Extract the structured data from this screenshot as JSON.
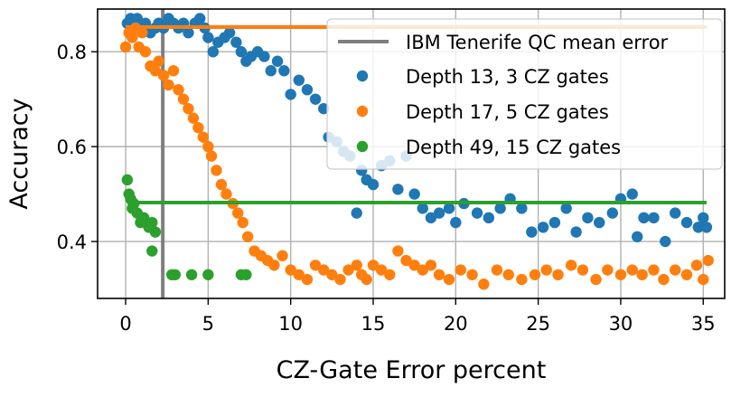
{
  "chart_data": {
    "type": "scatter",
    "xlabel": "CZ-Gate Error percent",
    "ylabel": "Accuracy",
    "xlim": [
      -1.7,
      36.3
    ],
    "ylim": [
      0.28,
      0.89
    ],
    "xticks": [
      0,
      5,
      10,
      15,
      20,
      25,
      30,
      35
    ],
    "yticks": [
      0.4,
      0.6,
      0.8
    ],
    "xtick_labels": [
      "0",
      "5",
      "10",
      "15",
      "20",
      "25",
      "30",
      "35"
    ],
    "ytick_labels": [
      "0.4",
      "0.6",
      "0.8"
    ],
    "grid": true,
    "legend_position": "top-right",
    "reference_line": {
      "label": "IBM Tenerife QC mean error",
      "x": 2.25,
      "color": "#7f7f7f"
    },
    "series": [
      {
        "name": "Depth 13, 3 CZ gates",
        "color": "#1f77b4",
        "mean_accuracy": 0.852,
        "points": [
          [
            0.1,
            0.86
          ],
          [
            0.3,
            0.87
          ],
          [
            0.5,
            0.86
          ],
          [
            0.7,
            0.87
          ],
          [
            0.9,
            0.85
          ],
          [
            1.2,
            0.86
          ],
          [
            1.5,
            0.84
          ],
          [
            1.8,
            0.85
          ],
          [
            2.0,
            0.86
          ],
          [
            2.3,
            0.85
          ],
          [
            2.6,
            0.87
          ],
          [
            2.9,
            0.86
          ],
          [
            3.2,
            0.85
          ],
          [
            3.5,
            0.86
          ],
          [
            3.8,
            0.84
          ],
          [
            4.2,
            0.86
          ],
          [
            4.5,
            0.87
          ],
          [
            4.8,
            0.85
          ],
          [
            5.0,
            0.83
          ],
          [
            5.3,
            0.8
          ],
          [
            5.6,
            0.82
          ],
          [
            6.0,
            0.83
          ],
          [
            6.3,
            0.84
          ],
          [
            6.7,
            0.82
          ],
          [
            7.0,
            0.8
          ],
          [
            7.3,
            0.78
          ],
          [
            7.6,
            0.79
          ],
          [
            8.0,
            0.8
          ],
          [
            8.4,
            0.79
          ],
          [
            8.8,
            0.76
          ],
          [
            9.2,
            0.78
          ],
          [
            9.6,
            0.76
          ],
          [
            10.0,
            0.71
          ],
          [
            10.5,
            0.74
          ],
          [
            11.0,
            0.72
          ],
          [
            11.5,
            0.7
          ],
          [
            12.0,
            0.68
          ],
          [
            12.3,
            0.62
          ],
          [
            12.8,
            0.61
          ],
          [
            13.2,
            0.59
          ],
          [
            13.6,
            0.58
          ],
          [
            14.0,
            0.46
          ],
          [
            14.3,
            0.55
          ],
          [
            14.6,
            0.53
          ],
          [
            15.0,
            0.52
          ],
          [
            15.5,
            0.56
          ],
          [
            16.0,
            0.57
          ],
          [
            16.5,
            0.51
          ],
          [
            17.0,
            0.58
          ],
          [
            17.5,
            0.5
          ],
          [
            18.0,
            0.47
          ],
          [
            18.5,
            0.45
          ],
          [
            19.0,
            0.46
          ],
          [
            19.6,
            0.47
          ],
          [
            20.0,
            0.44
          ],
          [
            20.5,
            0.48
          ],
          [
            21.3,
            0.46
          ],
          [
            22.0,
            0.45
          ],
          [
            22.7,
            0.47
          ],
          [
            23.3,
            0.49
          ],
          [
            24.0,
            0.47
          ],
          [
            24.6,
            0.42
          ],
          [
            25.3,
            0.43
          ],
          [
            26.0,
            0.44
          ],
          [
            26.7,
            0.47
          ],
          [
            27.3,
            0.42
          ],
          [
            28.0,
            0.45
          ],
          [
            28.7,
            0.44
          ],
          [
            29.5,
            0.46
          ],
          [
            30.0,
            0.49
          ],
          [
            30.7,
            0.5
          ],
          [
            31.0,
            0.41
          ],
          [
            31.4,
            0.45
          ],
          [
            32.0,
            0.45
          ],
          [
            32.7,
            0.4
          ],
          [
            33.3,
            0.46
          ],
          [
            34.0,
            0.44
          ],
          [
            34.7,
            0.43
          ],
          [
            35.0,
            0.45
          ],
          [
            35.2,
            0.43
          ]
        ]
      },
      {
        "name": "Depth 17, 5 CZ gates",
        "color": "#ff7f0e",
        "mean_accuracy": 0.852,
        "points": [
          [
            0.0,
            0.81
          ],
          [
            0.2,
            0.84
          ],
          [
            0.4,
            0.83
          ],
          [
            0.6,
            0.85
          ],
          [
            0.8,
            0.81
          ],
          [
            1.0,
            0.84
          ],
          [
            1.2,
            0.8
          ],
          [
            1.5,
            0.77
          ],
          [
            1.8,
            0.76
          ],
          [
            2.0,
            0.78
          ],
          [
            2.3,
            0.75
          ],
          [
            2.6,
            0.73
          ],
          [
            2.9,
            0.76
          ],
          [
            3.2,
            0.72
          ],
          [
            3.5,
            0.7
          ],
          [
            3.8,
            0.68
          ],
          [
            4.1,
            0.66
          ],
          [
            4.4,
            0.64
          ],
          [
            4.7,
            0.62
          ],
          [
            5.0,
            0.6
          ],
          [
            5.2,
            0.58
          ],
          [
            5.5,
            0.55
          ],
          [
            5.8,
            0.52
          ],
          [
            6.1,
            0.5
          ],
          [
            6.5,
            0.48
          ],
          [
            6.8,
            0.46
          ],
          [
            7.1,
            0.44
          ],
          [
            7.4,
            0.41
          ],
          [
            7.8,
            0.38
          ],
          [
            8.2,
            0.37
          ],
          [
            8.6,
            0.36
          ],
          [
            9.0,
            0.35
          ],
          [
            9.5,
            0.37
          ],
          [
            10.0,
            0.34
          ],
          [
            10.5,
            0.33
          ],
          [
            11.0,
            0.32
          ],
          [
            11.5,
            0.35
          ],
          [
            12.0,
            0.34
          ],
          [
            12.5,
            0.33
          ],
          [
            13.0,
            0.32
          ],
          [
            13.5,
            0.34
          ],
          [
            14.0,
            0.35
          ],
          [
            14.3,
            0.33
          ],
          [
            14.6,
            0.32
          ],
          [
            15.0,
            0.35
          ],
          [
            15.5,
            0.34
          ],
          [
            16.0,
            0.33
          ],
          [
            16.5,
            0.38
          ],
          [
            17.0,
            0.36
          ],
          [
            17.5,
            0.35
          ],
          [
            18.0,
            0.34
          ],
          [
            18.5,
            0.35
          ],
          [
            19.0,
            0.33
          ],
          [
            19.6,
            0.32
          ],
          [
            20.3,
            0.34
          ],
          [
            21.0,
            0.33
          ],
          [
            21.7,
            0.31
          ],
          [
            22.5,
            0.34
          ],
          [
            23.2,
            0.33
          ],
          [
            24.0,
            0.32
          ],
          [
            24.8,
            0.33
          ],
          [
            25.5,
            0.34
          ],
          [
            26.2,
            0.33
          ],
          [
            27.0,
            0.35
          ],
          [
            27.7,
            0.34
          ],
          [
            28.5,
            0.32
          ],
          [
            29.2,
            0.34
          ],
          [
            30.0,
            0.33
          ],
          [
            30.7,
            0.34
          ],
          [
            31.3,
            0.33
          ],
          [
            32.0,
            0.34
          ],
          [
            32.6,
            0.32
          ],
          [
            33.3,
            0.34
          ],
          [
            34.0,
            0.33
          ],
          [
            34.6,
            0.35
          ],
          [
            35.0,
            0.32
          ],
          [
            35.3,
            0.36
          ]
        ]
      },
      {
        "name": "Depth 49, 15 CZ gates",
        "color": "#2ca02c",
        "mean_accuracy": 0.482,
        "points": [
          [
            0.1,
            0.53
          ],
          [
            0.2,
            0.5
          ],
          [
            0.3,
            0.49
          ],
          [
            0.4,
            0.47
          ],
          [
            0.5,
            0.48
          ],
          [
            0.7,
            0.46
          ],
          [
            0.9,
            0.44
          ],
          [
            1.1,
            0.45
          ],
          [
            1.4,
            0.43
          ],
          [
            1.6,
            0.44
          ],
          [
            1.8,
            0.42
          ],
          [
            1.6,
            0.38
          ],
          [
            2.8,
            0.33
          ],
          [
            3.0,
            0.33
          ],
          [
            4.0,
            0.33
          ],
          [
            5.0,
            0.33
          ],
          [
            7.0,
            0.33
          ],
          [
            7.3,
            0.33
          ]
        ]
      }
    ]
  }
}
